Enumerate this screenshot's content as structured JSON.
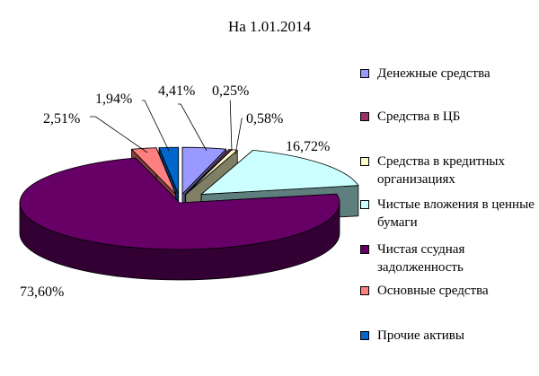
{
  "chart_data": {
    "type": "pie",
    "title": "На 1.01.2014",
    "legend_position": "right",
    "slices": [
      {
        "name": "Денежные средства",
        "value": 4.41,
        "label": "4,41%",
        "color": "#9999ff",
        "side": "#5a5a99"
      },
      {
        "name": "Средства в ЦБ",
        "value": 0.25,
        "label": "0,25%",
        "color": "#993366",
        "side": "#5c1f3d"
      },
      {
        "name": "Средства в кредитных организациях",
        "value": 0.58,
        "label": "0,58%",
        "color": "#ffffcc",
        "side": "#7f7f66"
      },
      {
        "name": "Чистые вложения в ценные бумаги",
        "value": 16.72,
        "label": "16,72%",
        "color": "#ccffff",
        "side": "#5f7f7f"
      },
      {
        "name": "Чистая ссудная задолженность",
        "value": 73.6,
        "label": "73,60%",
        "color": "#660066",
        "side": "#330033"
      },
      {
        "name": "Основные средства",
        "value": 2.51,
        "label": "2,51%",
        "color": "#ff8080",
        "side": "#804040"
      },
      {
        "name": "Прочие активы",
        "value": 1.94,
        "label": "1,94%",
        "color": "#0066cc",
        "side": "#003366"
      }
    ]
  }
}
